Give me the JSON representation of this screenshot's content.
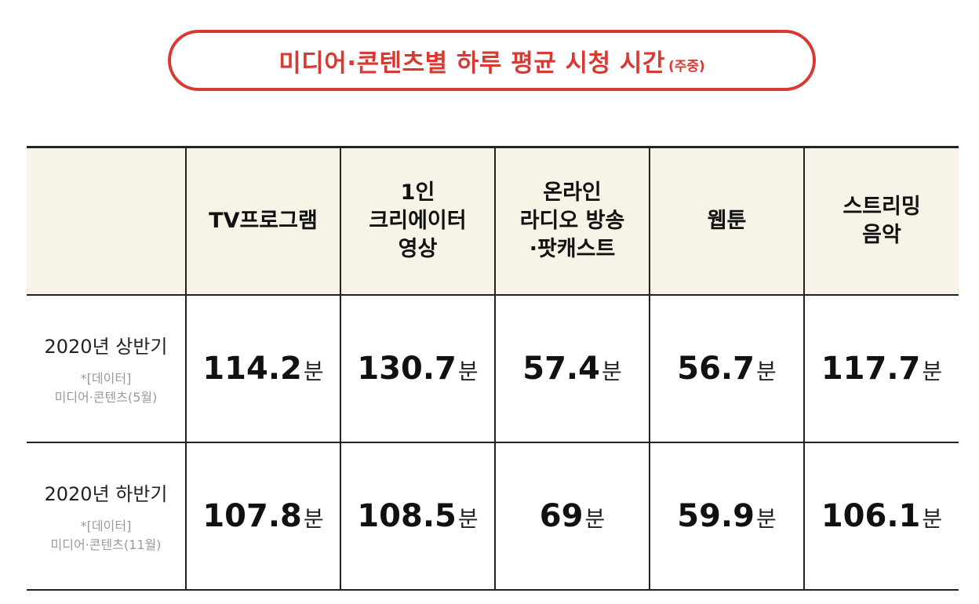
{
  "title": {
    "main": "미디어·콘텐츠별 하루 평균 시청 시간",
    "sub": "(주중)"
  },
  "colors": {
    "accent": "#d83a33",
    "header_background": "#f7f3e6",
    "border": "#222222",
    "source_text": "#9a9a9a"
  },
  "chart_data": {
    "type": "table",
    "title": "미디어·콘텐츠별 하루 평균 시청 시간",
    "subtitle": "(주중)",
    "columns": [
      [
        "TV프로그램"
      ],
      [
        "1인",
        "크리에이터",
        "영상"
      ],
      [
        "온라인",
        "라디오 방송",
        "·팟캐스트"
      ],
      [
        "웹툰"
      ],
      [
        "스트리밍",
        "음악"
      ]
    ],
    "unit": "분",
    "rows": [
      {
        "label": "2020년 상반기",
        "source": [
          "*[데이터]",
          "미디어·콘텐츠(5월)"
        ],
        "values": [
          "114.2",
          "130.7",
          "57.4",
          "56.7",
          "117.7"
        ]
      },
      {
        "label": "2020년 하반기",
        "source": [
          "*[데이터]",
          "미디어·콘텐츠(11월)"
        ],
        "values": [
          "107.8",
          "108.5",
          "69",
          "59.9",
          "106.1"
        ]
      }
    ]
  }
}
